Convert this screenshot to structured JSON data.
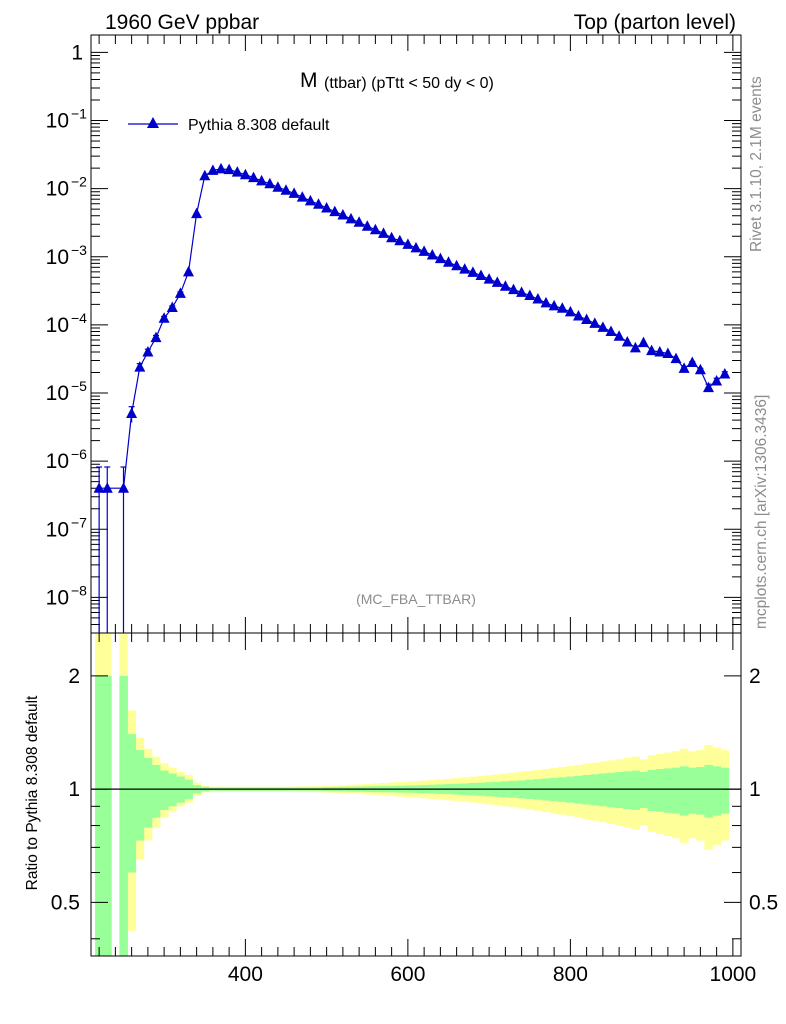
{
  "header": {
    "left": "1960 GeV ppbar",
    "right": "Top (parton level)"
  },
  "side_text": {
    "rivet": "Rivet 3.1.10,  2.1M events",
    "mcplots": "mcplots.cern.ch [arXiv:1306.3436]"
  },
  "chart_data": [
    {
      "type": "line",
      "title": "M (ttbar) (pTtt < 50 dy < 0)",
      "title_main": "M",
      "title_sub": "(ttbar) (pTtt < 50 dy < 0)",
      "watermark": "(MC_FBA_TTBAR)",
      "y_scale": "log",
      "xlim": [
        210,
        1010
      ],
      "ylim": [
        3e-09,
        1.8
      ],
      "marker": "triangle",
      "color": "#0000cc",
      "legend_position": "top-left",
      "y_ticks": [
        {
          "value": 1e-08,
          "label": "10",
          "exp": "−8"
        },
        {
          "value": 1e-07,
          "label": "10",
          "exp": "−7"
        },
        {
          "value": 1e-06,
          "label": "10",
          "exp": "−6"
        },
        {
          "value": 1e-05,
          "label": "10",
          "exp": "−5"
        },
        {
          "value": 0.0001,
          "label": "10",
          "exp": "−4"
        },
        {
          "value": 0.001,
          "label": "10",
          "exp": "−3"
        },
        {
          "value": 0.01,
          "label": "10",
          "exp": "−2"
        },
        {
          "value": 0.1,
          "label": "10",
          "exp": "−1"
        },
        {
          "value": 1,
          "label": "1",
          "exp": ""
        }
      ],
      "series": [
        {
          "name": "Pythia 8.308 default",
          "x": [
            220,
            230,
            240,
            250,
            260,
            270,
            280,
            290,
            300,
            310,
            320,
            330,
            340,
            350,
            360,
            370,
            380,
            390,
            400,
            410,
            420,
            430,
            440,
            450,
            460,
            470,
            480,
            490,
            500,
            510,
            520,
            530,
            540,
            550,
            560,
            570,
            580,
            590,
            600,
            610,
            620,
            630,
            640,
            650,
            660,
            670,
            680,
            690,
            700,
            710,
            720,
            730,
            740,
            750,
            760,
            770,
            780,
            790,
            800,
            810,
            820,
            830,
            840,
            850,
            860,
            870,
            880,
            890,
            900,
            910,
            920,
            930,
            940,
            950,
            960,
            970,
            980,
            990
          ],
          "y": [
            4e-07,
            4e-07,
            null,
            4e-07,
            5e-06,
            2.4e-05,
            4e-05,
            6.5e-05,
            0.000125,
            0.00018,
            0.00029,
            0.0006,
            0.0043,
            0.0155,
            0.0185,
            0.0195,
            0.019,
            0.0175,
            0.016,
            0.0145,
            0.013,
            0.0118,
            0.0105,
            0.0095,
            0.0085,
            0.0075,
            0.0066,
            0.0059,
            0.0052,
            0.0046,
            0.0041,
            0.0036,
            0.0032,
            0.0028,
            0.0025,
            0.0022,
            0.0019,
            0.00172,
            0.00152,
            0.00135,
            0.0012,
            0.00106,
            0.00094,
            0.00083,
            0.00074,
            0.00066,
            0.00059,
            0.00053,
            0.00047,
            0.00042,
            0.00037,
            0.00033,
            0.0003,
            0.00027,
            0.00024,
            0.00021,
            0.00019,
            0.000175,
            0.000155,
            0.000135,
            0.00012,
            0.000105,
            9.2e-05,
            8e-05,
            6.8e-05,
            5.6e-05,
            4.6e-05,
            5.5e-05,
            4.2e-05,
            4e-05,
            3.8e-05,
            3.2e-05,
            2.3e-05,
            2.8e-05,
            2.2e-05,
            1.2e-05,
            1.5e-05,
            1.9e-05
          ],
          "err_low": [
            4e-07,
            4e-07,
            null,
            4e-07,
            1.3e-06,
            3e-06,
            4e-06,
            5e-06,
            8e-06,
            1e-05,
            1.4e-05,
            2e-05,
            5e-05,
            0.0001,
            0.0001,
            0.0001,
            0.0001,
            0.0001,
            0.0001,
            8e-05,
            7e-05,
            6e-05,
            5e-05,
            5e-05,
            4e-05,
            4e-05,
            3e-05,
            3e-05,
            3e-05,
            2e-05,
            2e-05,
            2e-05,
            2e-05,
            1.5e-05,
            1.5e-05,
            1.2e-05,
            1e-05,
            1e-05,
            1e-05,
            8e-06,
            7e-06,
            6e-06,
            6e-06,
            5e-06,
            5e-06,
            4e-06,
            4e-06,
            4e-06,
            3.5e-06,
            3e-06,
            3e-06,
            3e-06,
            2.5e-06,
            2.5e-06,
            2.2e-06,
            2e-06,
            2e-06,
            2e-06,
            1.8e-06,
            1.6e-06,
            1.6e-06,
            1.5e-06,
            1.4e-06,
            1.3e-06,
            1.2e-06,
            1.2e-06,
            1.1e-06,
            1.2e-06,
            1e-06,
            1e-06,
            1e-06,
            1e-06,
            1e-06,
            1e-06,
            1e-06,
            1.5e-06,
            1.5e-06,
            1.5e-06
          ],
          "err_high": [
            4.2e-07,
            4.2e-07,
            null,
            4.2e-07,
            1.3e-06,
            3e-06,
            4e-06,
            5e-06,
            8e-06,
            1e-05,
            1.4e-05,
            2e-05,
            5e-05,
            0.0001,
            0.0001,
            0.0001,
            0.0001,
            0.0001,
            0.0001,
            8e-05,
            7e-05,
            6e-05,
            5e-05,
            5e-05,
            4e-05,
            4e-05,
            3e-05,
            3e-05,
            3e-05,
            2e-05,
            2e-05,
            2e-05,
            2e-05,
            1.5e-05,
            1.5e-05,
            1.2e-05,
            1e-05,
            1e-05,
            1e-05,
            8e-06,
            7e-06,
            6e-06,
            6e-06,
            5e-06,
            5e-06,
            4e-06,
            4e-06,
            4e-06,
            3.5e-06,
            3e-06,
            3e-06,
            3e-06,
            2.5e-06,
            2.5e-06,
            2.2e-06,
            2e-06,
            2e-06,
            2e-06,
            1.8e-06,
            1.6e-06,
            1.6e-06,
            1.5e-06,
            1.4e-06,
            1.3e-06,
            1.2e-06,
            1.2e-06,
            1.1e-06,
            1.2e-06,
            1e-06,
            1e-06,
            1e-06,
            1e-06,
            1e-06,
            1e-06,
            1e-06,
            1.5e-06,
            1.5e-06,
            1.5e-06
          ]
        }
      ]
    },
    {
      "type": "area",
      "ylabel": "Ratio to Pythia 8.308 default",
      "y_scale": "log",
      "xlim": [
        210,
        1010
      ],
      "ylim": [
        0.36,
        2.6
      ],
      "x_ticks": [
        400,
        600,
        800,
        1000
      ],
      "y_ticks": [
        {
          "value": 0.5,
          "label": "0.5"
        },
        {
          "value": 1,
          "label": "1"
        },
        {
          "value": 2,
          "label": "2"
        }
      ],
      "band_colors": {
        "stat": "#99ff99",
        "total": "#ffff99"
      },
      "bins": {
        "lo": [
          220,
          230,
          240,
          250,
          260,
          270,
          280,
          290,
          300,
          310,
          320,
          330,
          340,
          350,
          360,
          370,
          380,
          390,
          400,
          410,
          420,
          430,
          440,
          450,
          460,
          470,
          480,
          490,
          500,
          510,
          520,
          530,
          540,
          550,
          560,
          570,
          580,
          590,
          600,
          610,
          620,
          630,
          640,
          650,
          660,
          670,
          680,
          690,
          700,
          710,
          720,
          730,
          740,
          750,
          760,
          770,
          780,
          790,
          800,
          810,
          820,
          830,
          840,
          850,
          860,
          870,
          880,
          890,
          900,
          910,
          920,
          930,
          940,
          950,
          960,
          970,
          980,
          990
        ],
        "stat_lo": [
          0.3,
          0.3,
          null,
          0.3,
          0.6,
          0.73,
          0.79,
          0.84,
          0.88,
          0.9,
          0.92,
          0.94,
          0.975,
          0.985,
          0.99,
          0.99,
          0.99,
          0.99,
          0.99,
          0.99,
          0.99,
          0.99,
          0.99,
          0.99,
          0.99,
          0.99,
          0.99,
          0.99,
          0.988,
          0.987,
          0.986,
          0.985,
          0.984,
          0.983,
          0.982,
          0.981,
          0.98,
          0.979,
          0.978,
          0.977,
          0.975,
          0.973,
          0.971,
          0.969,
          0.967,
          0.965,
          0.962,
          0.96,
          0.957,
          0.954,
          0.951,
          0.948,
          0.945,
          0.941,
          0.937,
          0.933,
          0.929,
          0.925,
          0.92,
          0.915,
          0.91,
          0.905,
          0.9,
          0.895,
          0.89,
          0.885,
          0.88,
          0.89,
          0.875,
          0.87,
          0.865,
          0.86,
          0.85,
          0.86,
          0.855,
          0.84,
          0.85,
          0.86
        ],
        "stat_hi": [
          2.0,
          2.0,
          null,
          2.0,
          1.4,
          1.27,
          1.21,
          1.16,
          1.12,
          1.1,
          1.08,
          1.06,
          1.025,
          1.015,
          1.01,
          1.01,
          1.01,
          1.01,
          1.01,
          1.01,
          1.01,
          1.01,
          1.01,
          1.01,
          1.01,
          1.01,
          1.01,
          1.01,
          1.012,
          1.013,
          1.014,
          1.015,
          1.016,
          1.017,
          1.018,
          1.019,
          1.02,
          1.021,
          1.022,
          1.023,
          1.025,
          1.027,
          1.029,
          1.031,
          1.033,
          1.035,
          1.038,
          1.04,
          1.043,
          1.046,
          1.049,
          1.052,
          1.055,
          1.059,
          1.063,
          1.067,
          1.071,
          1.075,
          1.08,
          1.085,
          1.09,
          1.095,
          1.1,
          1.105,
          1.11,
          1.115,
          1.12,
          1.11,
          1.125,
          1.13,
          1.135,
          1.14,
          1.15,
          1.14,
          1.145,
          1.16,
          1.15,
          1.14
        ],
        "tot_lo": [
          0.3,
          0.3,
          null,
          0.3,
          0.42,
          0.65,
          0.73,
          0.79,
          0.84,
          0.87,
          0.9,
          0.92,
          0.96,
          0.98,
          0.985,
          0.985,
          0.985,
          0.985,
          0.985,
          0.985,
          0.985,
          0.985,
          0.985,
          0.985,
          0.984,
          0.983,
          0.982,
          0.981,
          0.979,
          0.977,
          0.975,
          0.973,
          0.971,
          0.968,
          0.965,
          0.962,
          0.959,
          0.956,
          0.953,
          0.95,
          0.946,
          0.942,
          0.938,
          0.934,
          0.93,
          0.926,
          0.921,
          0.916,
          0.911,
          0.906,
          0.9,
          0.894,
          0.888,
          0.882,
          0.876,
          0.869,
          0.862,
          0.855,
          0.848,
          0.84,
          0.832,
          0.824,
          0.816,
          0.808,
          0.8,
          0.79,
          0.78,
          0.8,
          0.77,
          0.76,
          0.75,
          0.74,
          0.72,
          0.74,
          0.73,
          0.69,
          0.71,
          0.73
        ],
        "tot_hi": [
          2.6,
          2.6,
          null,
          2.6,
          1.62,
          1.37,
          1.28,
          1.22,
          1.17,
          1.14,
          1.11,
          1.09,
          1.04,
          1.02,
          1.015,
          1.015,
          1.015,
          1.015,
          1.015,
          1.015,
          1.015,
          1.015,
          1.015,
          1.015,
          1.016,
          1.017,
          1.018,
          1.019,
          1.021,
          1.023,
          1.025,
          1.027,
          1.029,
          1.032,
          1.035,
          1.038,
          1.041,
          1.044,
          1.047,
          1.05,
          1.054,
          1.058,
          1.062,
          1.066,
          1.07,
          1.074,
          1.079,
          1.084,
          1.089,
          1.094,
          1.1,
          1.106,
          1.112,
          1.118,
          1.124,
          1.131,
          1.138,
          1.145,
          1.152,
          1.16,
          1.168,
          1.176,
          1.184,
          1.192,
          1.2,
          1.21,
          1.22,
          1.2,
          1.23,
          1.24,
          1.25,
          1.26,
          1.28,
          1.26,
          1.27,
          1.31,
          1.29,
          1.27
        ]
      },
      "reference_line": 1
    }
  ]
}
